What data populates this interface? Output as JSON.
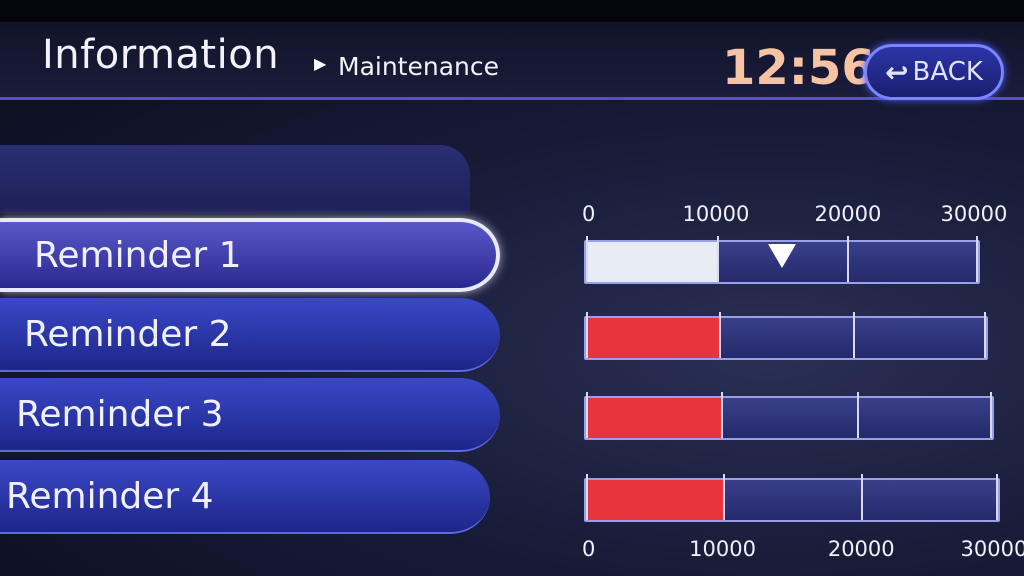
{
  "header": {
    "title": "Information",
    "separator": "▶",
    "subtitle": "Maintenance",
    "clock": "12:56",
    "back_label": "BACK",
    "back_icon": "↩"
  },
  "reminders": [
    {
      "label": "Reminder 1",
      "progress": 10000,
      "fill_color": "#e8ecf4",
      "selected": true,
      "marker": 15000
    },
    {
      "label": "Reminder 2",
      "progress": 10000,
      "fill_color": "#e8343c"
    },
    {
      "label": "Reminder 3",
      "progress": 10000,
      "fill_color": "#e8343c"
    },
    {
      "label": "Reminder 4",
      "progress": 10000,
      "fill_color": "#e8343c"
    }
  ],
  "scale": {
    "max": 30000,
    "top_ticks": [
      "0",
      "10000",
      "20000",
      "30000"
    ],
    "bottom_ticks": [
      "0",
      "10000",
      "20000",
      "30000"
    ]
  }
}
